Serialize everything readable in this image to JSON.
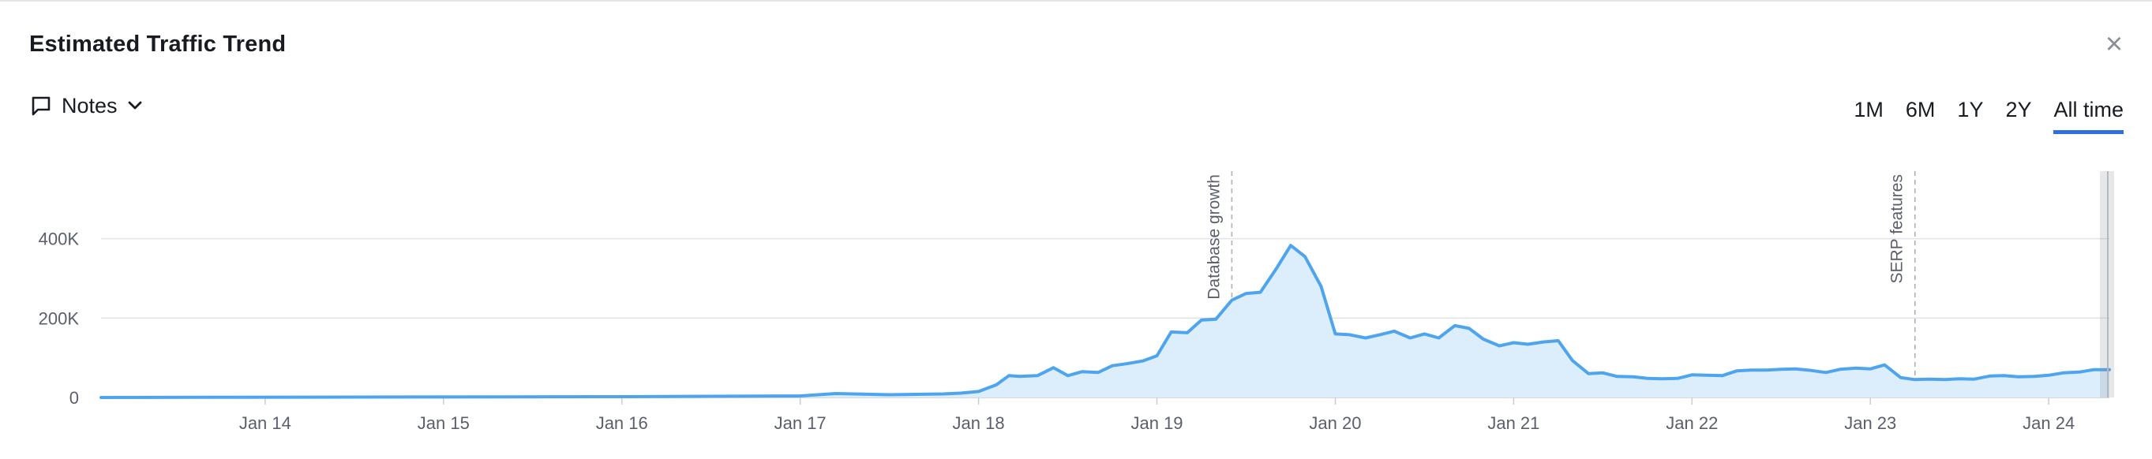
{
  "panel": {
    "title": "Estimated Traffic Trend",
    "close_icon": "close-icon",
    "notes_label": "Notes",
    "notes_icon": "comment-icon",
    "notes_chevron": "chevron-down-icon"
  },
  "ranges": [
    "1M",
    "6M",
    "1Y",
    "2Y",
    "All time"
  ],
  "active_range": "All time",
  "colors": {
    "line": "#4ea5ee",
    "area": "#dceefb",
    "grid": "#e1e3e8",
    "active_tab": "#2f6fdf"
  },
  "chart_data": {
    "type": "area",
    "title": "Estimated Traffic Trend",
    "xlabel": "",
    "ylabel": "",
    "ylim": [
      0,
      570000
    ],
    "y_ticks": [
      0,
      200000,
      400000
    ],
    "y_tick_labels": [
      "0",
      "200K",
      "400K"
    ],
    "x_range": [
      2013.08,
      2024.34
    ],
    "x_ticks": [
      2014,
      2015,
      2016,
      2017,
      2018,
      2019,
      2020,
      2021,
      2022,
      2023,
      2024
    ],
    "x_tick_labels": [
      "Jan 14",
      "Jan 15",
      "Jan 16",
      "Jan 17",
      "Jan 18",
      "Jan 19",
      "Jan 20",
      "Jan 21",
      "Jan 22",
      "Jan 23",
      "Jan 24"
    ],
    "grid": true,
    "series": [
      {
        "x": [
          2013.08,
          2016.0,
          2016.5,
          2017.0,
          2017.2,
          2017.5,
          2017.8,
          2017.9,
          2018.0,
          2018.1,
          2018.17,
          2018.23,
          2018.33,
          2018.42,
          2018.5,
          2018.58,
          2018.67,
          2018.75,
          2018.83,
          2018.92,
          2019.0,
          2019.08,
          2019.17,
          2019.25,
          2019.33,
          2019.42,
          2019.5,
          2019.58,
          2019.67,
          2019.75,
          2019.83,
          2019.92,
          2020.0,
          2020.08,
          2020.17,
          2020.25,
          2020.33,
          2020.42,
          2020.5,
          2020.58,
          2020.67,
          2020.75,
          2020.83,
          2020.92,
          2021.0,
          2021.08,
          2021.17,
          2021.25,
          2021.33,
          2021.42,
          2021.5,
          2021.58,
          2021.67,
          2021.75,
          2021.83,
          2021.92,
          2022.0,
          2022.08,
          2022.17,
          2022.25,
          2022.33,
          2022.42,
          2022.5,
          2022.58,
          2022.67,
          2022.75,
          2022.83,
          2022.92,
          2023.0,
          2023.08,
          2023.17,
          2023.25,
          2023.33,
          2023.42,
          2023.5,
          2023.58,
          2023.67,
          2023.75,
          2023.83,
          2023.92,
          2024.0,
          2024.08,
          2024.17,
          2024.25,
          2024.34
        ],
        "values": [
          0,
          2000,
          3000,
          4000,
          10000,
          7000,
          9000,
          11000,
          15000,
          32000,
          55000,
          53000,
          55000,
          75000,
          55000,
          65000,
          63000,
          80000,
          85000,
          92000,
          105000,
          165000,
          163000,
          195000,
          197000,
          245000,
          262000,
          265000,
          325000,
          383000,
          355000,
          280000,
          160000,
          158000,
          150000,
          158000,
          167000,
          150000,
          160000,
          150000,
          181000,
          174000,
          147000,
          130000,
          138000,
          134000,
          140000,
          143000,
          93000,
          60000,
          62000,
          53000,
          52000,
          48000,
          47000,
          48000,
          57000,
          56000,
          55000,
          67000,
          69000,
          69000,
          71000,
          72000,
          68000,
          63000,
          71000,
          74000,
          72000,
          82000,
          50000,
          45000,
          46000,
          45000,
          47000,
          46000,
          54000,
          55000,
          52000,
          53000,
          56000,
          62000,
          64000,
          70000,
          70000
        ]
      }
    ],
    "annotations": [
      {
        "x": 2019.42,
        "label": "Database growth"
      },
      {
        "x": 2023.25,
        "label": "SERP features"
      }
    ]
  }
}
